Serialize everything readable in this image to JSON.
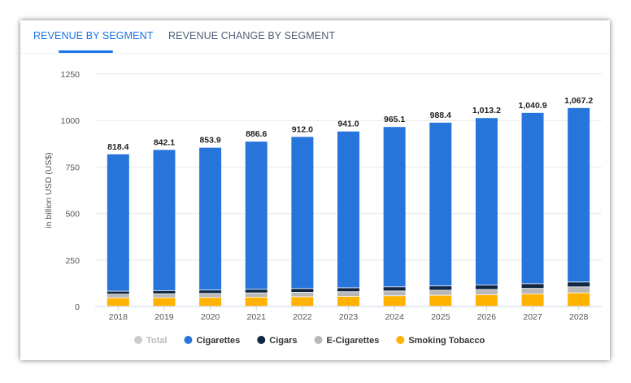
{
  "tabs": [
    {
      "label": "REVENUE BY SEGMENT",
      "active": true
    },
    {
      "label": "REVENUE CHANGE BY SEGMENT",
      "active": false
    }
  ],
  "chart_data": {
    "type": "bar",
    "stacked": true,
    "ylabel": "in billion USD (US$)",
    "ylim": [
      0,
      1250
    ],
    "yticks": [
      0,
      250,
      500,
      750,
      1000,
      1250
    ],
    "categories": [
      "2018",
      "2019",
      "2020",
      "2021",
      "2022",
      "2023",
      "2024",
      "2025",
      "2026",
      "2027",
      "2028"
    ],
    "totals": [
      "818.4",
      "842.1",
      "853.9",
      "886.6",
      "912.0",
      "941.0",
      "965.1",
      "988.4",
      "1,013.2",
      "1,040.9",
      "1,067.2"
    ],
    "series": [
      {
        "name": "Smoking Tobacco",
        "color": "#ffb200",
        "values": [
          45,
          46,
          47,
          49,
          51,
          53,
          56,
          59,
          62,
          66,
          72
        ]
      },
      {
        "name": "E-Cigarettes",
        "color": "#b8b8b8",
        "values": [
          20,
          21,
          22,
          23,
          24,
          25,
          26,
          27,
          28,
          30,
          32
        ]
      },
      {
        "name": "Cigars",
        "color": "#0f2741",
        "values": [
          16,
          17,
          18,
          19,
          20,
          21,
          22,
          23,
          24,
          25,
          26
        ]
      },
      {
        "name": "Cigarettes",
        "color": "#2775db",
        "values": [
          737.4,
          758.1,
          766.9,
          795.6,
          817.0,
          842.0,
          861.1,
          879.4,
          899.2,
          919.9,
          937.2
        ]
      }
    ],
    "legend": [
      {
        "name": "Total",
        "color": "#cccccc",
        "text_color": "#bbbbbb"
      },
      {
        "name": "Cigarettes",
        "color": "#2775db",
        "text_color": "#333333"
      },
      {
        "name": "Cigars",
        "color": "#0f2741",
        "text_color": "#333333"
      },
      {
        "name": "E-Cigarettes",
        "color": "#b8b8b8",
        "text_color": "#333333"
      },
      {
        "name": "Smoking Tobacco",
        "color": "#ffb200",
        "text_color": "#333333"
      }
    ],
    "legend_position": "bottom",
    "grid": true
  }
}
